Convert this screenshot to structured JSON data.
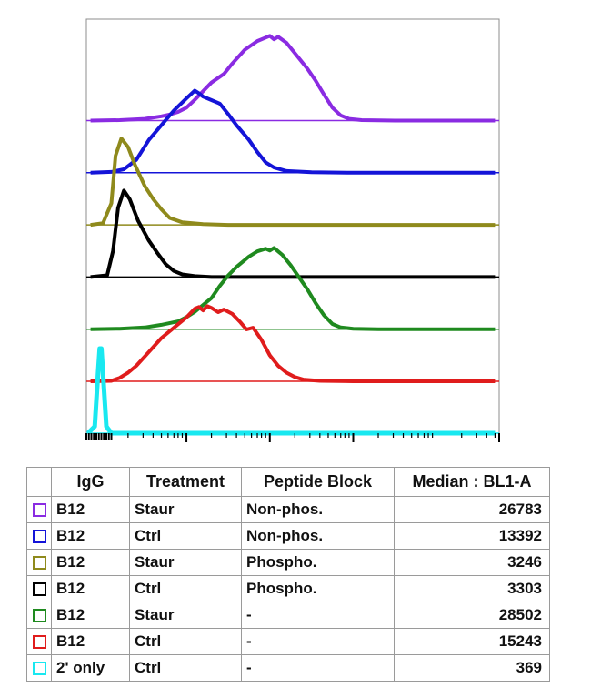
{
  "chart_data": {
    "type": "line",
    "xscale": "log",
    "series": [
      {
        "key": "purple",
        "color": "#8a2be2",
        "offset": 5,
        "points": [
          [
            -0.15,
            0
          ],
          [
            0.2,
            0.5
          ],
          [
            0.5,
            2
          ],
          [
            0.7,
            5
          ],
          [
            0.8,
            7
          ],
          [
            0.9,
            10
          ],
          [
            1.0,
            15
          ],
          [
            1.1,
            24
          ],
          [
            1.2,
            34
          ],
          [
            1.3,
            44
          ],
          [
            1.45,
            54
          ],
          [
            1.55,
            66
          ],
          [
            1.7,
            82
          ],
          [
            1.85,
            92
          ],
          [
            1.95,
            96
          ],
          [
            2.0,
            98
          ],
          [
            2.05,
            94
          ],
          [
            2.1,
            97
          ],
          [
            2.2,
            90
          ],
          [
            2.3,
            78
          ],
          [
            2.45,
            60
          ],
          [
            2.55,
            46
          ],
          [
            2.65,
            30
          ],
          [
            2.75,
            15
          ],
          [
            2.85,
            6
          ],
          [
            2.95,
            2
          ],
          [
            3.1,
            0.5
          ],
          [
            3.5,
            0
          ],
          [
            4.7,
            0
          ]
        ]
      },
      {
        "key": "blue",
        "color": "#1414d8",
        "offset": 4,
        "points": [
          [
            -0.15,
            0
          ],
          [
            0.1,
            1
          ],
          [
            0.25,
            4
          ],
          [
            0.4,
            15
          ],
          [
            0.55,
            38
          ],
          [
            0.7,
            55
          ],
          [
            0.85,
            72
          ],
          [
            1.0,
            86
          ],
          [
            1.1,
            95
          ],
          [
            1.15,
            92
          ],
          [
            1.2,
            88
          ],
          [
            1.3,
            84
          ],
          [
            1.4,
            80
          ],
          [
            1.5,
            68
          ],
          [
            1.6,
            55
          ],
          [
            1.75,
            38
          ],
          [
            1.85,
            24
          ],
          [
            1.95,
            12
          ],
          [
            2.05,
            6
          ],
          [
            2.2,
            2
          ],
          [
            2.5,
            0.5
          ],
          [
            3.0,
            0
          ],
          [
            4.7,
            0
          ]
        ]
      },
      {
        "key": "olive",
        "color": "#8f8a1c",
        "offset": 3,
        "points": [
          [
            -0.15,
            0
          ],
          [
            0.0,
            2
          ],
          [
            0.1,
            25
          ],
          [
            0.15,
            80
          ],
          [
            0.22,
            100
          ],
          [
            0.3,
            90
          ],
          [
            0.38,
            70
          ],
          [
            0.5,
            45
          ],
          [
            0.6,
            30
          ],
          [
            0.7,
            18
          ],
          [
            0.8,
            8
          ],
          [
            0.95,
            3
          ],
          [
            1.2,
            1
          ],
          [
            1.5,
            0
          ],
          [
            4.7,
            0
          ]
        ]
      },
      {
        "key": "black",
        "color": "#000000",
        "offset": 2,
        "points": [
          [
            -0.15,
            0
          ],
          [
            0.05,
            2
          ],
          [
            0.12,
            30
          ],
          [
            0.18,
            80
          ],
          [
            0.25,
            100
          ],
          [
            0.32,
            90
          ],
          [
            0.42,
            65
          ],
          [
            0.55,
            42
          ],
          [
            0.65,
            28
          ],
          [
            0.75,
            15
          ],
          [
            0.85,
            7
          ],
          [
            0.95,
            3
          ],
          [
            1.1,
            1
          ],
          [
            1.3,
            0
          ],
          [
            4.7,
            0
          ]
        ]
      },
      {
        "key": "green",
        "color": "#1f8a1f",
        "offset": 1,
        "points": [
          [
            -0.15,
            0
          ],
          [
            0.2,
            0.5
          ],
          [
            0.5,
            2
          ],
          [
            0.7,
            5
          ],
          [
            0.9,
            9
          ],
          [
            1.0,
            14
          ],
          [
            1.1,
            20
          ],
          [
            1.2,
            28
          ],
          [
            1.3,
            36
          ],
          [
            1.4,
            50
          ],
          [
            1.5,
            62
          ],
          [
            1.6,
            72
          ],
          [
            1.7,
            80
          ],
          [
            1.75,
            84
          ],
          [
            1.85,
            90
          ],
          [
            1.95,
            93
          ],
          [
            2.0,
            91
          ],
          [
            2.05,
            94
          ],
          [
            2.1,
            90
          ],
          [
            2.15,
            86
          ],
          [
            2.25,
            74
          ],
          [
            2.35,
            60
          ],
          [
            2.45,
            46
          ],
          [
            2.55,
            30
          ],
          [
            2.65,
            16
          ],
          [
            2.75,
            6
          ],
          [
            2.85,
            2
          ],
          [
            3.0,
            0.5
          ],
          [
            3.3,
            0
          ],
          [
            4.7,
            0
          ]
        ]
      },
      {
        "key": "red",
        "color": "#e01c1c",
        "offset": 0,
        "points": [
          [
            -0.15,
            0
          ],
          [
            0.1,
            0.5
          ],
          [
            0.2,
            4
          ],
          [
            0.3,
            10
          ],
          [
            0.4,
            18
          ],
          [
            0.55,
            34
          ],
          [
            0.7,
            50
          ],
          [
            0.85,
            62
          ],
          [
            1.0,
            74
          ],
          [
            1.1,
            84
          ],
          [
            1.15,
            86
          ],
          [
            1.2,
            82
          ],
          [
            1.25,
            87
          ],
          [
            1.3,
            85
          ],
          [
            1.38,
            80
          ],
          [
            1.45,
            83
          ],
          [
            1.55,
            78
          ],
          [
            1.65,
            68
          ],
          [
            1.72,
            60
          ],
          [
            1.8,
            62
          ],
          [
            1.9,
            48
          ],
          [
            2.0,
            30
          ],
          [
            2.1,
            18
          ],
          [
            2.2,
            10
          ],
          [
            2.3,
            5
          ],
          [
            2.4,
            2
          ],
          [
            2.6,
            0.5
          ],
          [
            3.0,
            0
          ],
          [
            4.7,
            0
          ]
        ]
      },
      {
        "key": "cyan",
        "color": "#19e8f0",
        "offset": -1,
        "points": [
          [
            -0.18,
            0
          ],
          [
            -0.1,
            8
          ],
          [
            -0.06,
            70
          ],
          [
            -0.04,
            100
          ],
          [
            -0.02,
            100
          ],
          [
            0.0,
            70
          ],
          [
            0.04,
            8
          ],
          [
            0.1,
            0
          ],
          [
            4.7,
            0
          ]
        ]
      }
    ],
    "xlim": [
      -0.2,
      4.75
    ],
    "major_ticks": [
      1,
      2,
      3
    ],
    "minor_ticks": [
      0.3,
      0.48,
      0.6,
      0.7,
      0.78,
      0.85,
      0.9,
      0.95,
      1.3,
      1.48,
      1.6,
      1.7,
      1.78,
      1.85,
      1.9,
      1.95,
      2.3,
      2.48,
      2.6,
      2.7,
      2.78,
      2.85,
      2.9,
      2.95,
      3.3,
      3.48,
      3.6,
      3.7,
      3.78,
      3.85,
      3.9,
      3.95,
      4.3,
      4.48,
      4.6,
      4.7
    ]
  },
  "table": {
    "headers": [
      "IgG",
      "Treatment",
      "Peptide Block",
      "Median : BL1-A"
    ],
    "rows": [
      {
        "color": "#8a2be2",
        "igg": "B12",
        "treatment": "Staur",
        "block": "Non-phos.",
        "median": "26783"
      },
      {
        "color": "#1414d8",
        "igg": "B12",
        "treatment": "Ctrl",
        "block": "Non-phos.",
        "median": "13392"
      },
      {
        "color": "#8f8a1c",
        "igg": "B12",
        "treatment": "Staur",
        "block": "Phospho.",
        "median": "3246"
      },
      {
        "color": "#000000",
        "igg": "B12",
        "treatment": "Ctrl",
        "block": "Phospho.",
        "median": "3303"
      },
      {
        "color": "#1f8a1f",
        "igg": "B12",
        "treatment": "Staur",
        "block": "-",
        "median": "28502"
      },
      {
        "color": "#e01c1c",
        "igg": "B12",
        "treatment": "Ctrl",
        "block": "-",
        "median": "15243"
      },
      {
        "color": "#19e8f0",
        "igg": "2' only",
        "treatment": "Ctrl",
        "block": "-",
        "median": "369"
      }
    ]
  }
}
